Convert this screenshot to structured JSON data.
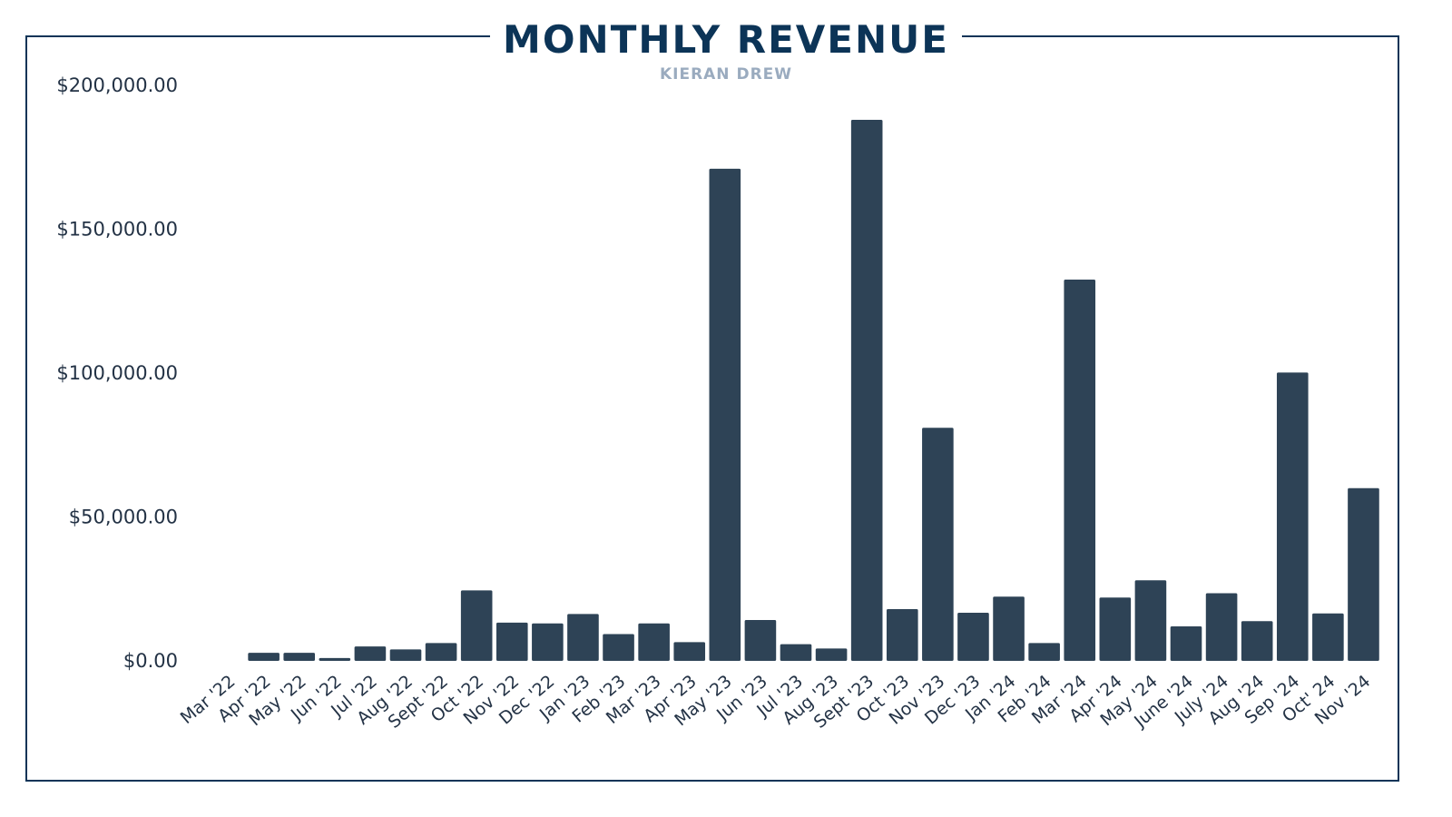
{
  "chart_data": {
    "type": "bar",
    "title": "MONTHLY REVENUE",
    "subtitle": "KIERAN DREW",
    "xlabel": "",
    "ylabel": "",
    "ylim": [
      0,
      200000
    ],
    "y_tick_values": [
      0,
      50000,
      100000,
      150000,
      200000
    ],
    "y_tick_labels": [
      "$0.00",
      "$50,000.00",
      "$100,000.00",
      "$150,000.00",
      "$200,000.00"
    ],
    "categories": [
      "Mar '22",
      "Apr '22",
      "May '22",
      "Jun '22",
      "Jul '22",
      "Aug '22",
      "Sept '22",
      "Oct '22",
      "Nov '22",
      "Dec '22",
      "Jan '23",
      "Feb '23",
      "Mar '23",
      "Apr '23",
      "May '23",
      "Jun '23",
      "Jul '23",
      "Aug '23",
      "Sept '23",
      "Oct '23",
      "Nov '23",
      "Dec '23",
      "Jan '24",
      "Feb '24",
      "Mar '24",
      "Apr '24",
      "May '24",
      "June '24",
      "July '24",
      "Aug '24",
      "Sep '24",
      "Oct' 24",
      "Nov '24"
    ],
    "values": [
      0,
      2800,
      2800,
      1000,
      5000,
      4000,
      6200,
      24500,
      13300,
      13000,
      16300,
      9300,
      13000,
      6500,
      171000,
      14200,
      5800,
      4300,
      188000,
      18000,
      81000,
      16700,
      22300,
      6200,
      132500,
      22000,
      28000,
      12000,
      23500,
      13800,
      100200,
      16500,
      60000
    ],
    "bar_color": "#2e4356",
    "grid": false,
    "legend": "none"
  }
}
